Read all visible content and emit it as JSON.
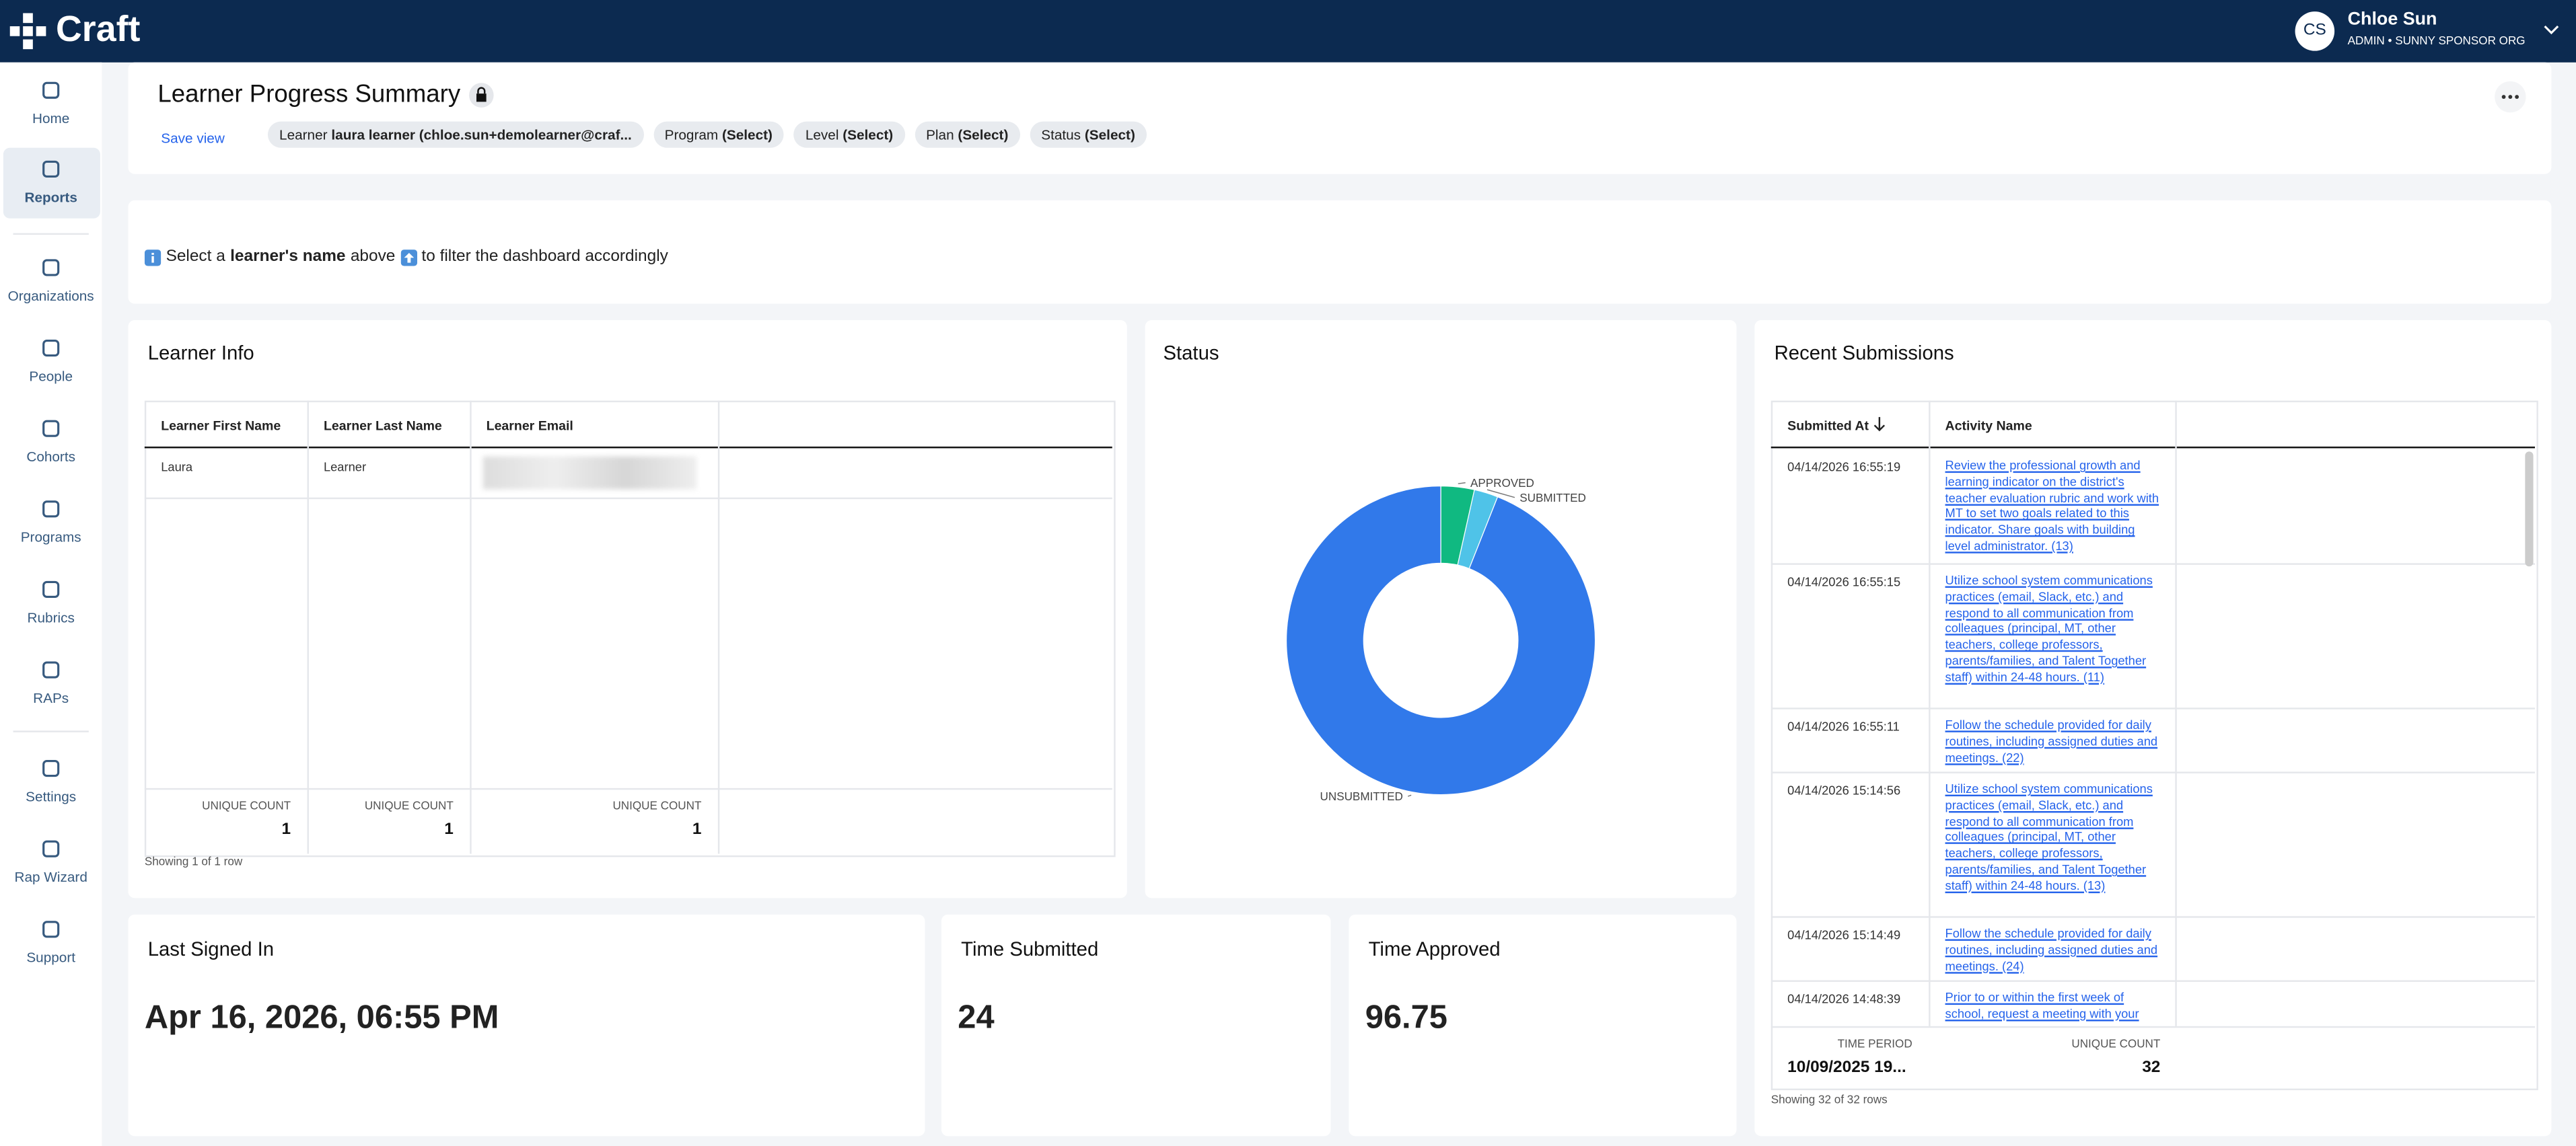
{
  "app": {
    "brand": "Craft",
    "user_initials": "CS",
    "user_name": "Chloe Sun",
    "user_role": "ADMIN • SUNNY SPONSOR ORG"
  },
  "nav": [
    "Home",
    "Reports",
    "Organizations",
    "People",
    "Cohorts",
    "Programs",
    "Rubrics",
    "RAPs",
    "Settings",
    "Rap Wizard",
    "Support"
  ],
  "header": {
    "title": "Learner Progress Summary",
    "save_view": "Save view",
    "filters": [
      {
        "label": "Learner",
        "value": "laura learner (chloe.sun+demolearner@craf..."
      },
      {
        "label": "Program",
        "value": "(Select)"
      },
      {
        "label": "Level",
        "value": "(Select)"
      },
      {
        "label": "Plan",
        "value": "(Select)"
      },
      {
        "label": "Status",
        "value": "(Select)"
      }
    ]
  },
  "notice": {
    "prefix": "Select a",
    "bold": "learner's name",
    "suffix": "above",
    "end": "to filter the dashboard accordingly"
  },
  "learner_info": {
    "title": "Learner Info",
    "columns": [
      "Learner First Name",
      "Learner Last Name",
      "Learner Email"
    ],
    "rows": [
      [
        "Laura",
        "Learner"
      ]
    ],
    "footer": [
      {
        "label": "UNIQUE COUNT",
        "value": 1
      },
      {
        "label": "UNIQUE COUNT",
        "value": 1
      },
      {
        "label": "UNIQUE COUNT",
        "value": 1
      }
    ],
    "row_count": "Showing 1 of 1 row"
  },
  "chart_data": {
    "type": "pie",
    "title": "Status",
    "categories": [
      "APPROVED",
      "SUBMITTED",
      "UNSUBMITTED"
    ],
    "values": [
      3.5,
      2.5,
      94
    ],
    "colors": [
      "#10b981",
      "#4fc3e8",
      "#3179ea"
    ]
  },
  "recent_submissions": {
    "title": "Recent Submissions",
    "columns": [
      "Submitted At",
      "Activity Name"
    ],
    "rows": [
      [
        "04/14/2026 16:55:19",
        "Review the professional growth and learning indicator on the district's teacher evaluation rubric and work with MT to set two goals related to this indicator.  Share goals with building level administrator. (13)"
      ],
      [
        "04/14/2026 16:55:15",
        "Utilize school system communications practices (email, Slack, etc.) and respond to all communication from colleagues (principal, MT, other teachers, college professors, parents/families, and Talent Together staff) within 24-48 hours. (11)"
      ],
      [
        "04/14/2026 16:55:11",
        "Follow the schedule provided for daily routines, including assigned duties and meetings. (22)"
      ],
      [
        "04/14/2026 15:14:56",
        "Utilize school system communications practices (email, Slack, etc.) and respond to all communication from colleagues (principal, MT, other teachers, college professors, parents/families, and Talent Together staff) within 24-48 hours. (13)"
      ],
      [
        "04/14/2026 15:14:49",
        "Follow the schedule provided for daily routines, including assigned duties and meetings. (24)"
      ],
      [
        "04/14/2026 14:48:39",
        "Prior to or within the first week of school, request a meeting with your"
      ]
    ],
    "footer": [
      {
        "label": "TIME PERIOD",
        "value": "10/09/2025 19..."
      },
      {
        "label": "UNIQUE COUNT",
        "value": 32
      }
    ],
    "row_count": "Showing 32 of 32 rows"
  },
  "last_signed_in": {
    "title": "Last Signed In",
    "value": "Apr 16, 2026, 06:55 PM"
  },
  "time_submitted": {
    "title": "Time Submitted",
    "value": 24
  },
  "time_approved": {
    "title": "Time Approved",
    "value": 96.75
  }
}
